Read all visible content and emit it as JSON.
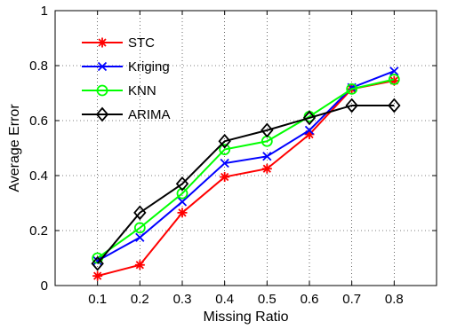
{
  "chart_data": {
    "type": "line",
    "xlabel": "Missing Ratio",
    "ylabel": "Average Error",
    "x": [
      0.1,
      0.2,
      0.3,
      0.4,
      0.5,
      0.6,
      0.7,
      0.8
    ],
    "x_tick_labels": [
      "0.1",
      "0.2",
      "0.3",
      "0.4",
      "0.5",
      "0.6",
      "0.7",
      "0.8"
    ],
    "xlim": [
      0,
      0.9
    ],
    "ylim": [
      0,
      1
    ],
    "y_ticks": [
      0,
      0.2,
      0.4,
      0.6,
      0.8,
      1
    ],
    "y_tick_labels": [
      "0",
      "0.2",
      "0.4",
      "0.6",
      "0.8",
      "1"
    ],
    "grid": true,
    "legend_position": "top-left",
    "series": [
      {
        "name": "STC",
        "color": "#ff0000",
        "marker": "asterisk",
        "values": [
          0.035,
          0.075,
          0.265,
          0.395,
          0.425,
          0.55,
          0.715,
          0.745
        ]
      },
      {
        "name": "Kriging",
        "color": "#0000ff",
        "marker": "x",
        "values": [
          0.09,
          0.175,
          0.305,
          0.445,
          0.47,
          0.565,
          0.72,
          0.78
        ]
      },
      {
        "name": "KNN",
        "color": "#00ff00",
        "marker": "circle",
        "values": [
          0.1,
          0.21,
          0.335,
          0.495,
          0.525,
          0.615,
          0.715,
          0.75
        ]
      },
      {
        "name": "ARIMA",
        "color": "#000000",
        "marker": "diamond",
        "values": [
          0.08,
          0.265,
          0.37,
          0.525,
          0.565,
          0.61,
          0.655,
          0.655
        ]
      }
    ]
  }
}
